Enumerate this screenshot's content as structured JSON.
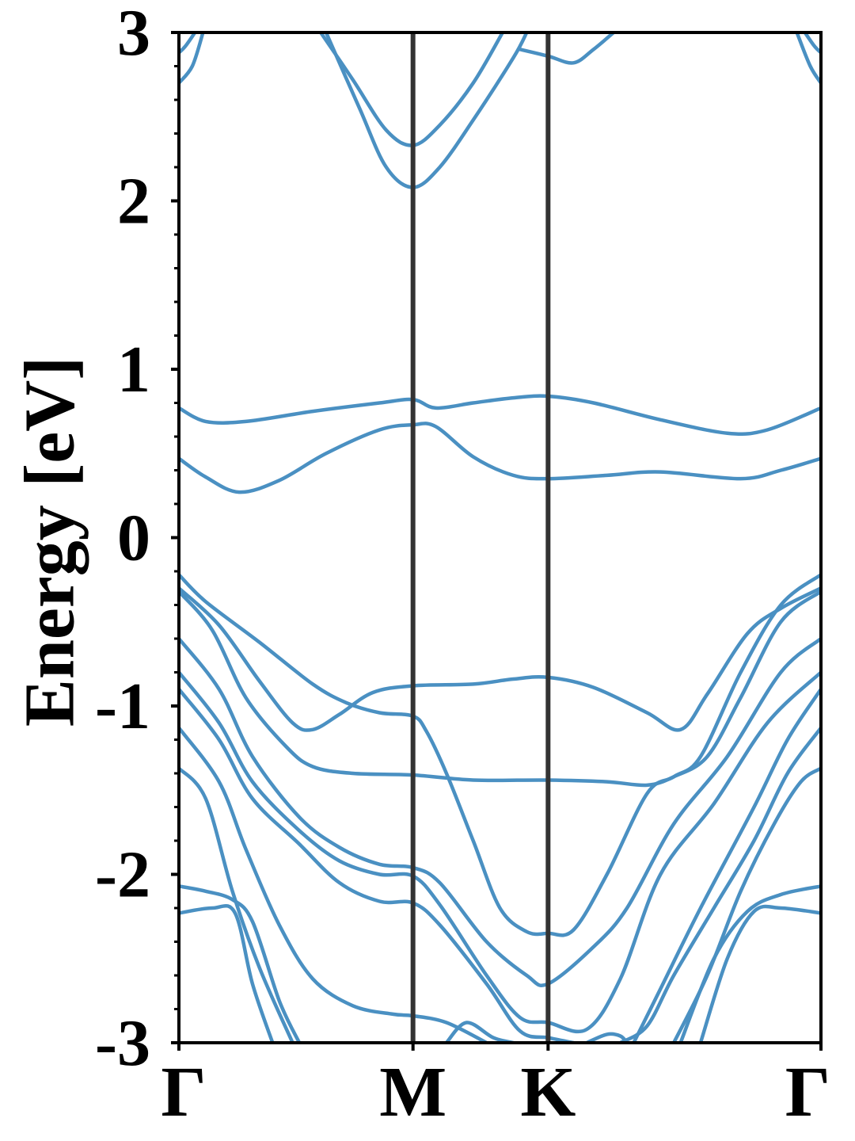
{
  "chart_data": {
    "type": "line",
    "title": "",
    "xlabel": "",
    "ylabel": "Energy [eV]",
    "ylim": [
      -3,
      3
    ],
    "y_major_ticks": [
      -3,
      -2,
      -1,
      0,
      1,
      2,
      3
    ],
    "y_tick_labels": [
      "-3",
      "-2",
      "-1",
      "0",
      "1",
      "2",
      "3"
    ],
    "y_minor_tick_step": 0.2,
    "x_range": [
      0,
      4.8
    ],
    "high_symmetry_points": [
      {
        "label": "Γ",
        "x": 0.0
      },
      {
        "label": "M",
        "x": 1.75
      },
      {
        "label": "K",
        "x": 2.76
      },
      {
        "label": "Γ",
        "x": 4.8
      }
    ],
    "grid": false,
    "legend": "none",
    "colors": {
      "band": "#4a90c2",
      "symmetry_line": "#333333",
      "axes": "#000000"
    },
    "series": [
      {
        "points": [
          [
            0.0,
            2.7
          ],
          [
            0.1,
            2.8
          ],
          [
            0.18,
            3.0
          ]
        ]
      },
      {
        "points": [
          [
            0.0,
            2.88
          ],
          [
            0.05,
            2.92
          ],
          [
            0.12,
            3.0
          ]
        ]
      },
      {
        "points": [
          [
            1.06,
            3.0
          ],
          [
            1.3,
            2.72
          ],
          [
            1.55,
            2.42
          ],
          [
            1.75,
            2.33
          ],
          [
            1.95,
            2.45
          ],
          [
            2.2,
            2.7
          ],
          [
            2.42,
            3.0
          ]
        ]
      },
      {
        "points": [
          [
            1.1,
            3.0
          ],
          [
            1.35,
            2.55
          ],
          [
            1.55,
            2.2
          ],
          [
            1.75,
            2.08
          ],
          [
            1.95,
            2.2
          ],
          [
            2.2,
            2.48
          ],
          [
            2.5,
            2.85
          ],
          [
            2.6,
            3.0
          ]
        ]
      },
      {
        "points": [
          [
            2.55,
            2.9
          ],
          [
            2.76,
            2.86
          ],
          [
            2.95,
            2.82
          ],
          [
            3.1,
            2.9
          ],
          [
            3.25,
            3.0
          ]
        ]
      },
      {
        "points": [
          [
            4.62,
            3.0
          ],
          [
            4.72,
            2.8
          ],
          [
            4.8,
            2.7
          ]
        ]
      },
      {
        "points": [
          [
            4.68,
            3.0
          ],
          [
            4.75,
            2.92
          ],
          [
            4.8,
            2.88
          ]
        ]
      },
      {
        "points": [
          [
            0.0,
            0.77
          ],
          [
            0.2,
            0.69
          ],
          [
            0.5,
            0.69
          ],
          [
            1.0,
            0.75
          ],
          [
            1.5,
            0.8
          ],
          [
            1.75,
            0.82
          ],
          [
            1.92,
            0.77
          ],
          [
            2.2,
            0.8
          ],
          [
            2.5,
            0.83
          ],
          [
            2.76,
            0.84
          ],
          [
            3.1,
            0.8
          ],
          [
            3.6,
            0.7
          ],
          [
            4.1,
            0.62
          ],
          [
            4.4,
            0.64
          ],
          [
            4.8,
            0.77
          ]
        ]
      },
      {
        "points": [
          [
            0.0,
            0.47
          ],
          [
            0.2,
            0.36
          ],
          [
            0.45,
            0.27
          ],
          [
            0.75,
            0.34
          ],
          [
            1.1,
            0.5
          ],
          [
            1.5,
            0.64
          ],
          [
            1.75,
            0.67
          ],
          [
            1.92,
            0.66
          ],
          [
            2.2,
            0.48
          ],
          [
            2.5,
            0.37
          ],
          [
            2.76,
            0.35
          ],
          [
            3.2,
            0.37
          ],
          [
            3.6,
            0.39
          ],
          [
            4.2,
            0.35
          ],
          [
            4.5,
            0.4
          ],
          [
            4.8,
            0.47
          ]
        ]
      },
      {
        "points": [
          [
            0.0,
            -0.22
          ],
          [
            0.2,
            -0.38
          ],
          [
            0.6,
            -0.62
          ],
          [
            1.0,
            -0.87
          ],
          [
            1.25,
            -0.98
          ],
          [
            1.5,
            -1.04
          ],
          [
            1.75,
            -1.06
          ],
          [
            1.85,
            -1.15
          ],
          [
            2.0,
            -1.4
          ],
          [
            2.2,
            -1.8
          ],
          [
            2.4,
            -2.2
          ],
          [
            2.6,
            -2.34
          ],
          [
            2.76,
            -2.35
          ],
          [
            2.95,
            -2.33
          ],
          [
            3.2,
            -2.0
          ],
          [
            3.5,
            -1.52
          ],
          [
            3.7,
            -1.42
          ],
          [
            3.9,
            -1.3
          ],
          [
            4.2,
            -0.8
          ],
          [
            4.5,
            -0.4
          ],
          [
            4.8,
            -0.22
          ]
        ]
      },
      {
        "points": [
          [
            0.0,
            -0.3
          ],
          [
            0.3,
            -0.52
          ],
          [
            0.6,
            -0.85
          ],
          [
            0.85,
            -1.1
          ],
          [
            1.0,
            -1.14
          ],
          [
            1.2,
            -1.05
          ],
          [
            1.45,
            -0.92
          ],
          [
            1.75,
            -0.88
          ],
          [
            2.2,
            -0.87
          ],
          [
            2.5,
            -0.84
          ],
          [
            2.76,
            -0.83
          ],
          [
            3.1,
            -0.89
          ],
          [
            3.5,
            -1.04
          ],
          [
            3.75,
            -1.14
          ],
          [
            3.95,
            -0.93
          ],
          [
            4.25,
            -0.57
          ],
          [
            4.5,
            -0.42
          ],
          [
            4.8,
            -0.3
          ]
        ]
      },
      {
        "points": [
          [
            0.0,
            -0.32
          ],
          [
            0.25,
            -0.55
          ],
          [
            0.5,
            -0.95
          ],
          [
            0.8,
            -1.24
          ],
          [
            1.0,
            -1.36
          ],
          [
            1.3,
            -1.4
          ],
          [
            1.75,
            -1.41
          ],
          [
            2.2,
            -1.44
          ],
          [
            2.76,
            -1.44
          ],
          [
            3.2,
            -1.45
          ],
          [
            3.5,
            -1.47
          ],
          [
            3.7,
            -1.42
          ],
          [
            3.95,
            -1.3
          ],
          [
            4.2,
            -0.95
          ],
          [
            4.5,
            -0.5
          ],
          [
            4.8,
            -0.32
          ]
        ]
      },
      {
        "points": [
          [
            0.0,
            -0.6
          ],
          [
            0.3,
            -0.9
          ],
          [
            0.55,
            -1.3
          ],
          [
            0.9,
            -1.66
          ],
          [
            1.2,
            -1.84
          ],
          [
            1.5,
            -1.94
          ],
          [
            1.75,
            -1.96
          ],
          [
            1.95,
            -2.05
          ],
          [
            2.3,
            -2.4
          ],
          [
            2.6,
            -2.6
          ],
          [
            2.76,
            -2.65
          ],
          [
            3.1,
            -2.43
          ],
          [
            3.35,
            -2.2
          ],
          [
            3.7,
            -1.7
          ],
          [
            4.1,
            -1.3
          ],
          [
            4.5,
            -0.8
          ],
          [
            4.8,
            -0.6
          ]
        ]
      },
      {
        "points": [
          [
            0.0,
            -0.8
          ],
          [
            0.3,
            -1.1
          ],
          [
            0.55,
            -1.45
          ],
          [
            0.9,
            -1.74
          ],
          [
            1.2,
            -1.92
          ],
          [
            1.5,
            -2.0
          ],
          [
            1.75,
            -2.01
          ],
          [
            1.95,
            -2.18
          ],
          [
            2.3,
            -2.6
          ],
          [
            2.55,
            -2.85
          ],
          [
            2.76,
            -2.88
          ],
          [
            3.05,
            -2.92
          ],
          [
            3.3,
            -2.62
          ],
          [
            3.6,
            -2.0
          ],
          [
            4.0,
            -1.58
          ],
          [
            4.4,
            -1.1
          ],
          [
            4.8,
            -0.8
          ]
        ]
      },
      {
        "points": [
          [
            0.0,
            -0.9
          ],
          [
            0.3,
            -1.2
          ],
          [
            0.55,
            -1.55
          ],
          [
            0.9,
            -1.82
          ],
          [
            1.2,
            -2.05
          ],
          [
            1.5,
            -2.16
          ],
          [
            1.75,
            -2.17
          ],
          [
            1.95,
            -2.3
          ],
          [
            2.3,
            -2.65
          ],
          [
            2.55,
            -2.93
          ],
          [
            2.76,
            -2.97
          ],
          [
            2.95,
            -3.0
          ]
        ]
      },
      {
        "points": [
          [
            3.4,
            -3.0
          ],
          [
            3.6,
            -2.68
          ],
          [
            3.9,
            -2.2
          ],
          [
            4.3,
            -1.6
          ],
          [
            4.55,
            -1.2
          ],
          [
            4.8,
            -0.9
          ]
        ]
      },
      {
        "points": [
          [
            0.0,
            -1.13
          ],
          [
            0.3,
            -1.45
          ],
          [
            0.5,
            -1.85
          ],
          [
            0.75,
            -2.3
          ],
          [
            1.0,
            -2.62
          ],
          [
            1.3,
            -2.78
          ],
          [
            1.6,
            -2.83
          ],
          [
            1.75,
            -2.84
          ],
          [
            2.0,
            -2.88
          ],
          [
            2.3,
            -3.0
          ]
        ]
      },
      {
        "points": [
          [
            3.3,
            -3.0
          ],
          [
            3.5,
            -2.9
          ],
          [
            3.7,
            -2.6
          ],
          [
            4.0,
            -2.2
          ],
          [
            4.3,
            -1.8
          ],
          [
            4.55,
            -1.4
          ],
          [
            4.8,
            -1.13
          ]
        ]
      },
      {
        "points": [
          [
            0.0,
            -1.37
          ],
          [
            0.2,
            -1.55
          ],
          [
            0.4,
            -2.1
          ],
          [
            0.6,
            -2.55
          ],
          [
            0.85,
            -3.0
          ]
        ]
      },
      {
        "points": [
          [
            3.7,
            -3.0
          ],
          [
            3.95,
            -2.6
          ],
          [
            4.2,
            -2.1
          ],
          [
            4.45,
            -1.7
          ],
          [
            4.65,
            -1.45
          ],
          [
            4.8,
            -1.37
          ]
        ]
      },
      {
        "points": [
          [
            0.0,
            -2.07
          ],
          [
            0.2,
            -2.1
          ],
          [
            0.4,
            -2.15
          ],
          [
            0.55,
            -2.28
          ],
          [
            0.75,
            -2.75
          ],
          [
            0.9,
            -3.0
          ]
        ]
      },
      {
        "points": [
          [
            3.75,
            -3.0
          ],
          [
            4.0,
            -2.5
          ],
          [
            4.25,
            -2.22
          ],
          [
            4.5,
            -2.12
          ],
          [
            4.8,
            -2.07
          ]
        ]
      },
      {
        "points": [
          [
            0.0,
            -2.23
          ],
          [
            0.25,
            -2.2
          ],
          [
            0.42,
            -2.23
          ],
          [
            0.55,
            -2.65
          ],
          [
            0.7,
            -3.0
          ]
        ]
      },
      {
        "points": [
          [
            3.9,
            -3.0
          ],
          [
            4.1,
            -2.5
          ],
          [
            4.3,
            -2.22
          ],
          [
            4.5,
            -2.2
          ],
          [
            4.8,
            -2.23
          ]
        ]
      },
      {
        "points": [
          [
            2.0,
            -3.0
          ],
          [
            2.15,
            -2.88
          ],
          [
            2.35,
            -2.97
          ],
          [
            2.5,
            -3.0
          ]
        ]
      },
      {
        "points": [
          [
            3.05,
            -3.0
          ],
          [
            3.2,
            -2.95
          ],
          [
            3.3,
            -2.96
          ],
          [
            3.35,
            -3.0
          ]
        ]
      }
    ]
  }
}
